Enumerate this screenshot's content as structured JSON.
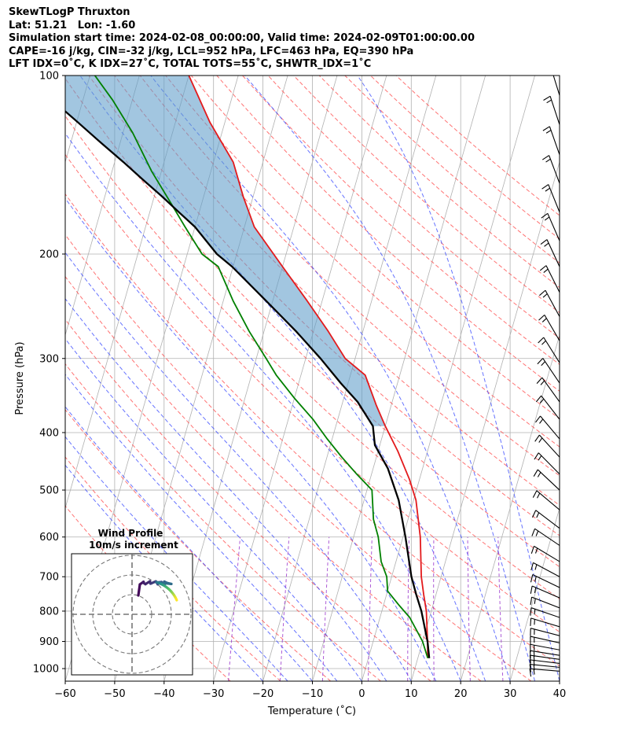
{
  "header": {
    "line1": "SkewTLogP Thruxton",
    "line2": "Lat: 51.21   Lon: -1.60",
    "line3": "Simulation start time: 2024-02-08_00:00:00, Valid time: 2024-02-09T01:00:00.00",
    "line4": "CAPE=-16 j/kg, CIN=-32 j/kg, LCL=952 hPa, LFC=463 hPa, EQ=390 hPa",
    "line5": "LFT IDX=0˚C, K IDX=27˚C, TOTAL TOTS=55˚C, SHWTR_IDX=1˚C"
  },
  "chart_data": [
    {
      "type": "line",
      "subtype": "skew-t log-p",
      "xlabel": "Temperature (˚C)",
      "ylabel": "Pressure (hPa)",
      "xlim": [
        -60,
        40
      ],
      "ylim": [
        1050,
        100
      ],
      "x_ticks": [
        -60,
        -50,
        -40,
        -30,
        -20,
        -10,
        0,
        10,
        20,
        30,
        40
      ],
      "y_ticks": [
        100,
        200,
        300,
        400,
        500,
        600,
        700,
        800,
        900,
        1000
      ],
      "grid": true,
      "series": [
        {
          "name": "Temperature",
          "color": "#e31a1c",
          "points": [
            [
              12,
              960
            ],
            [
              11,
              900
            ],
            [
              9,
              800
            ],
            [
              7.5,
              750
            ],
            [
              6,
              700
            ],
            [
              3.5,
              600
            ],
            [
              0.5,
              520
            ],
            [
              -2,
              480
            ],
            [
              -6,
              430
            ],
            [
              -10,
              390
            ],
            [
              -13,
              360
            ],
            [
              -17,
              320
            ],
            [
              -22,
              300
            ],
            [
              -27,
              270
            ],
            [
              -33,
              240
            ],
            [
              -40,
              210
            ],
            [
              -48,
              180
            ],
            [
              -52,
              160
            ],
            [
              -56,
              140
            ],
            [
              -63,
              120
            ],
            [
              -70,
              100
            ]
          ]
        },
        {
          "name": "Dewpoint",
          "color": "#008000",
          "points": [
            [
              12,
              960
            ],
            [
              10,
              900
            ],
            [
              6,
              820
            ],
            [
              3,
              780
            ],
            [
              0,
              740
            ],
            [
              -1,
              700
            ],
            [
              -3,
              660
            ],
            [
              -5,
              600
            ],
            [
              -7,
              560
            ],
            [
              -9,
              500
            ],
            [
              -13,
              470
            ],
            [
              -17,
              440
            ],
            [
              -21,
              410
            ],
            [
              -25,
              380
            ],
            [
              -30,
              350
            ],
            [
              -35,
              320
            ],
            [
              -38,
              300
            ],
            [
              -43,
              270
            ],
            [
              -48,
              240
            ],
            [
              -53,
              210
            ],
            [
              -57,
              200
            ],
            [
              -62,
              180
            ],
            [
              -66,
              165
            ],
            [
              -72,
              145
            ],
            [
              -78,
              125
            ],
            [
              -84,
              110
            ],
            [
              -89,
              100
            ]
          ]
        },
        {
          "name": "Parcel profile",
          "color": "#000000",
          "points": [
            [
              12.3,
              960
            ],
            [
              11,
              900
            ],
            [
              8,
              800
            ],
            [
              6,
              750
            ],
            [
              4,
              700
            ],
            [
              0.5,
              600
            ],
            [
              -3,
              520
            ],
            [
              -7,
              460
            ],
            [
              -11,
              420
            ],
            [
              -12.5,
              390
            ],
            [
              -17,
              355
            ],
            [
              -21.5,
              330
            ],
            [
              -27,
              300
            ],
            [
              -33.5,
              270
            ],
            [
              -41.3,
              240
            ],
            [
              -50.2,
              210
            ],
            [
              -54,
              200
            ],
            [
              -60,
              180
            ],
            [
              -64.1,
              170
            ],
            [
              -68.4,
              160
            ],
            [
              -73.2,
              150
            ],
            [
              -78.2,
              140
            ],
            [
              -83.8,
              130
            ],
            [
              -89.7,
              120
            ],
            [
              -96.2,
              110
            ],
            [
              -103,
              100
            ]
          ]
        }
      ],
      "wind_barbs": {
        "pressures": [
          1010,
          995,
          980,
          965,
          950,
          930,
          905,
          880,
          850,
          820,
          790,
          760,
          730,
          700,
          660,
          620,
          580,
          540,
          500,
          470,
          440,
          410,
          380,
          355,
          330,
          305,
          280,
          255,
          232,
          210,
          190,
          170,
          152,
          136,
          121,
          108
        ]
      },
      "hodograph": {
        "title": "Wind Profile",
        "subtitle": "10m/s increment",
        "colormap": "viridis"
      }
    }
  ]
}
